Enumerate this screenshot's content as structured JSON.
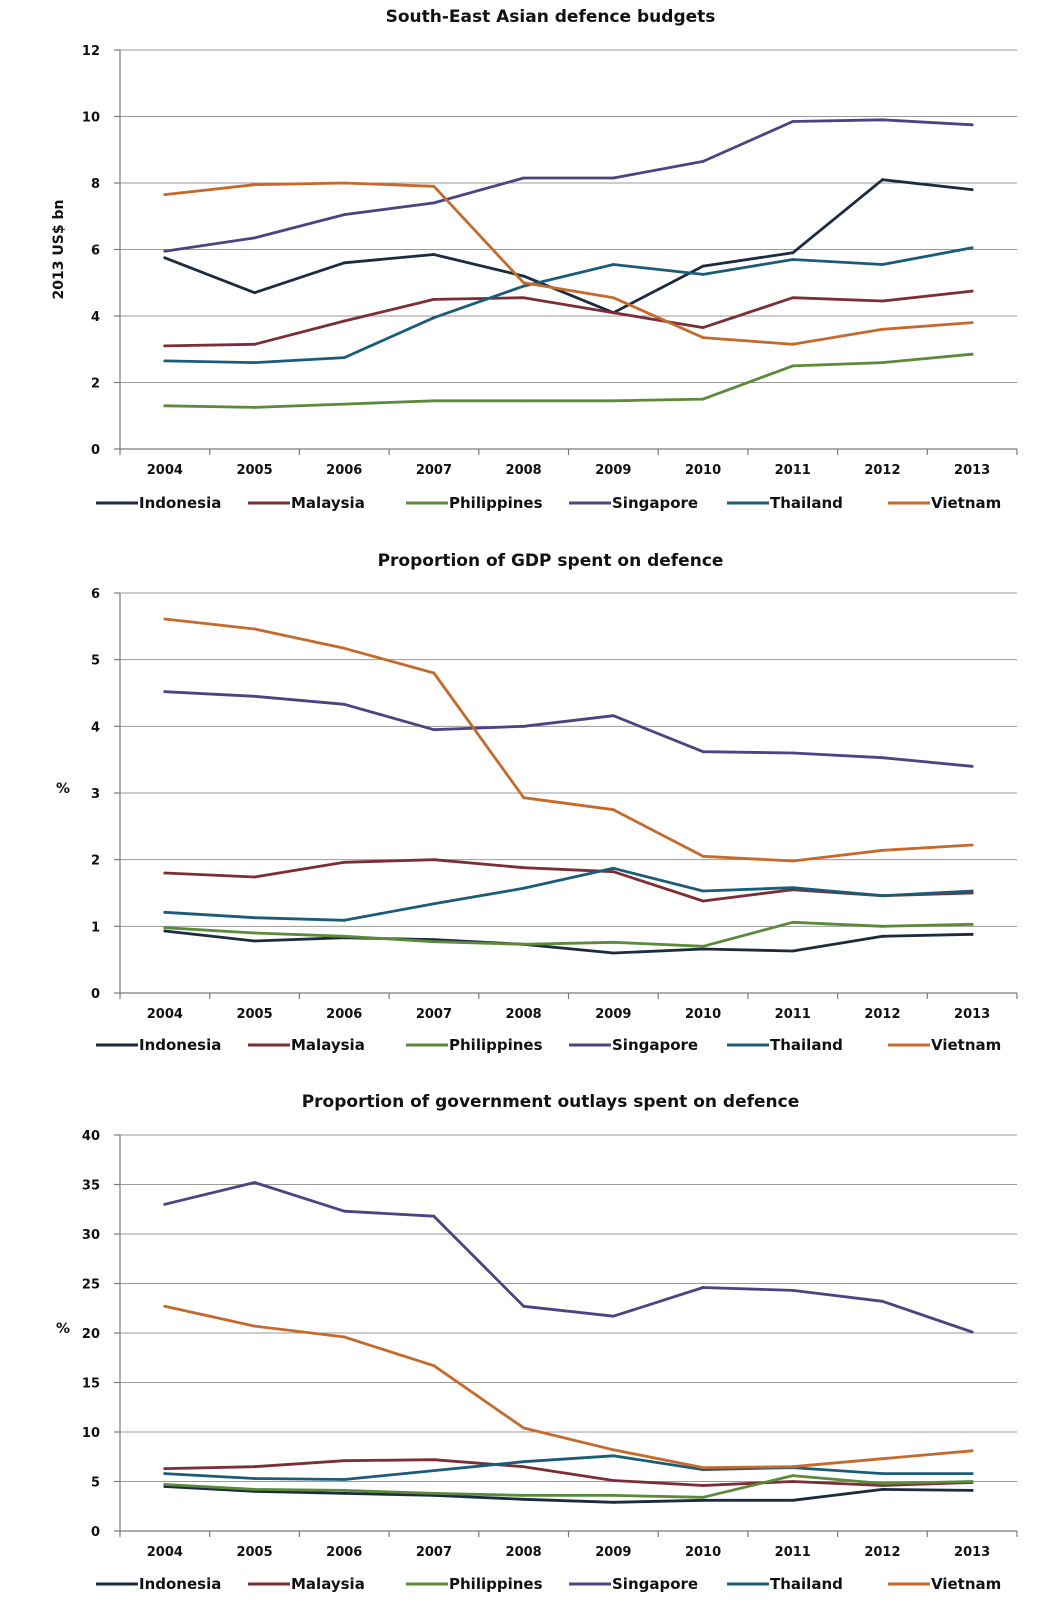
{
  "colors": {
    "Indonesia": "#1c2b40",
    "Malaysia": "#7b2e36",
    "Philippines": "#5b8a3a",
    "Singapore": "#4b4483",
    "Thailand": "#1b5c78",
    "Vietnam": "#c56a2c"
  },
  "chart_data": [
    {
      "type": "line",
      "title": "South-East Asian defence budgets",
      "ylabel": "2013 US$ bn",
      "xlabel": "",
      "x": [
        "2004",
        "2005",
        "2006",
        "2007",
        "2008",
        "2009",
        "2010",
        "2011",
        "2012",
        "2013"
      ],
      "ylim": [
        0,
        12
      ],
      "yticks": [
        0,
        2,
        4,
        6,
        8,
        10,
        12
      ],
      "grid": true,
      "legend": "bottom",
      "series": [
        {
          "name": "Indonesia",
          "values": [
            5.75,
            4.7,
            5.6,
            5.85,
            5.2,
            4.1,
            5.5,
            5.9,
            8.1,
            7.8
          ]
        },
        {
          "name": "Malaysia",
          "values": [
            3.1,
            3.15,
            3.85,
            4.5,
            4.55,
            4.1,
            3.65,
            4.55,
            4.45,
            4.75
          ]
        },
        {
          "name": "Philippines",
          "values": [
            1.3,
            1.25,
            1.35,
            1.45,
            1.45,
            1.45,
            1.5,
            2.5,
            2.6,
            2.85
          ]
        },
        {
          "name": "Singapore",
          "values": [
            5.95,
            6.35,
            7.05,
            7.4,
            8.15,
            8.15,
            8.65,
            9.85,
            9.9,
            9.75
          ]
        },
        {
          "name": "Thailand",
          "values": [
            2.65,
            2.6,
            2.75,
            3.95,
            4.9,
            5.55,
            5.25,
            5.7,
            5.55,
            6.05
          ]
        },
        {
          "name": "Vietnam",
          "values": [
            7.65,
            7.95,
            8.0,
            7.9,
            5.0,
            4.55,
            3.35,
            3.15,
            3.6,
            3.8
          ]
        }
      ]
    },
    {
      "type": "line",
      "title": "Proportion of GDP spent on defence",
      "ylabel": "%",
      "xlabel": "",
      "x": [
        "2004",
        "2005",
        "2006",
        "2007",
        "2008",
        "2009",
        "2010",
        "2011",
        "2012",
        "2013"
      ],
      "ylim": [
        0,
        6
      ],
      "yticks": [
        0,
        1,
        2,
        3,
        4,
        5,
        6
      ],
      "grid": true,
      "legend": "bottom",
      "series": [
        {
          "name": "Indonesia",
          "values": [
            0.93,
            0.78,
            0.83,
            0.8,
            0.73,
            0.6,
            0.66,
            0.63,
            0.85,
            0.88
          ]
        },
        {
          "name": "Malaysia",
          "values": [
            1.8,
            1.74,
            1.96,
            2.0,
            1.88,
            1.82,
            1.38,
            1.55,
            1.46,
            1.5
          ]
        },
        {
          "name": "Philippines",
          "values": [
            0.98,
            0.9,
            0.85,
            0.77,
            0.73,
            0.76,
            0.7,
            1.06,
            1.0,
            1.03
          ]
        },
        {
          "name": "Singapore",
          "values": [
            4.52,
            4.45,
            4.33,
            3.95,
            4.0,
            4.16,
            3.62,
            3.6,
            3.53,
            3.4
          ]
        },
        {
          "name": "Thailand",
          "values": [
            1.21,
            1.13,
            1.09,
            1.34,
            1.57,
            1.87,
            1.53,
            1.58,
            1.46,
            1.53
          ]
        },
        {
          "name": "Vietnam",
          "values": [
            5.61,
            5.46,
            5.17,
            4.8,
            2.93,
            2.75,
            2.05,
            1.98,
            2.14,
            2.22
          ]
        }
      ]
    },
    {
      "type": "line",
      "title": "Proportion of government outlays spent on defence",
      "ylabel": "%",
      "xlabel": "",
      "x": [
        "2004",
        "2005",
        "2006",
        "2007",
        "2008",
        "2009",
        "2010",
        "2011",
        "2012",
        "2013"
      ],
      "ylim": [
        0,
        40
      ],
      "yticks": [
        0,
        5,
        10,
        15,
        20,
        25,
        30,
        35,
        40
      ],
      "grid": true,
      "legend": "bottom",
      "series": [
        {
          "name": "Indonesia",
          "values": [
            4.5,
            4.0,
            3.8,
            3.6,
            3.2,
            2.9,
            3.1,
            3.1,
            4.2,
            4.1
          ]
        },
        {
          "name": "Malaysia",
          "values": [
            6.3,
            6.5,
            7.1,
            7.2,
            6.5,
            5.1,
            4.6,
            5.0,
            4.6,
            4.9
          ]
        },
        {
          "name": "Philippines",
          "values": [
            4.7,
            4.2,
            4.1,
            3.8,
            3.6,
            3.6,
            3.4,
            5.6,
            4.8,
            5.0
          ]
        },
        {
          "name": "Singapore",
          "values": [
            33.0,
            35.2,
            32.3,
            31.8,
            22.7,
            21.7,
            24.6,
            24.3,
            23.2,
            20.1
          ]
        },
        {
          "name": "Thailand",
          "values": [
            5.8,
            5.3,
            5.2,
            6.1,
            7.0,
            7.6,
            6.2,
            6.4,
            5.8,
            5.8
          ]
        },
        {
          "name": "Vietnam",
          "values": [
            22.7,
            20.7,
            19.6,
            16.7,
            10.4,
            8.2,
            6.4,
            6.5,
            7.3,
            8.1
          ]
        }
      ]
    }
  ]
}
